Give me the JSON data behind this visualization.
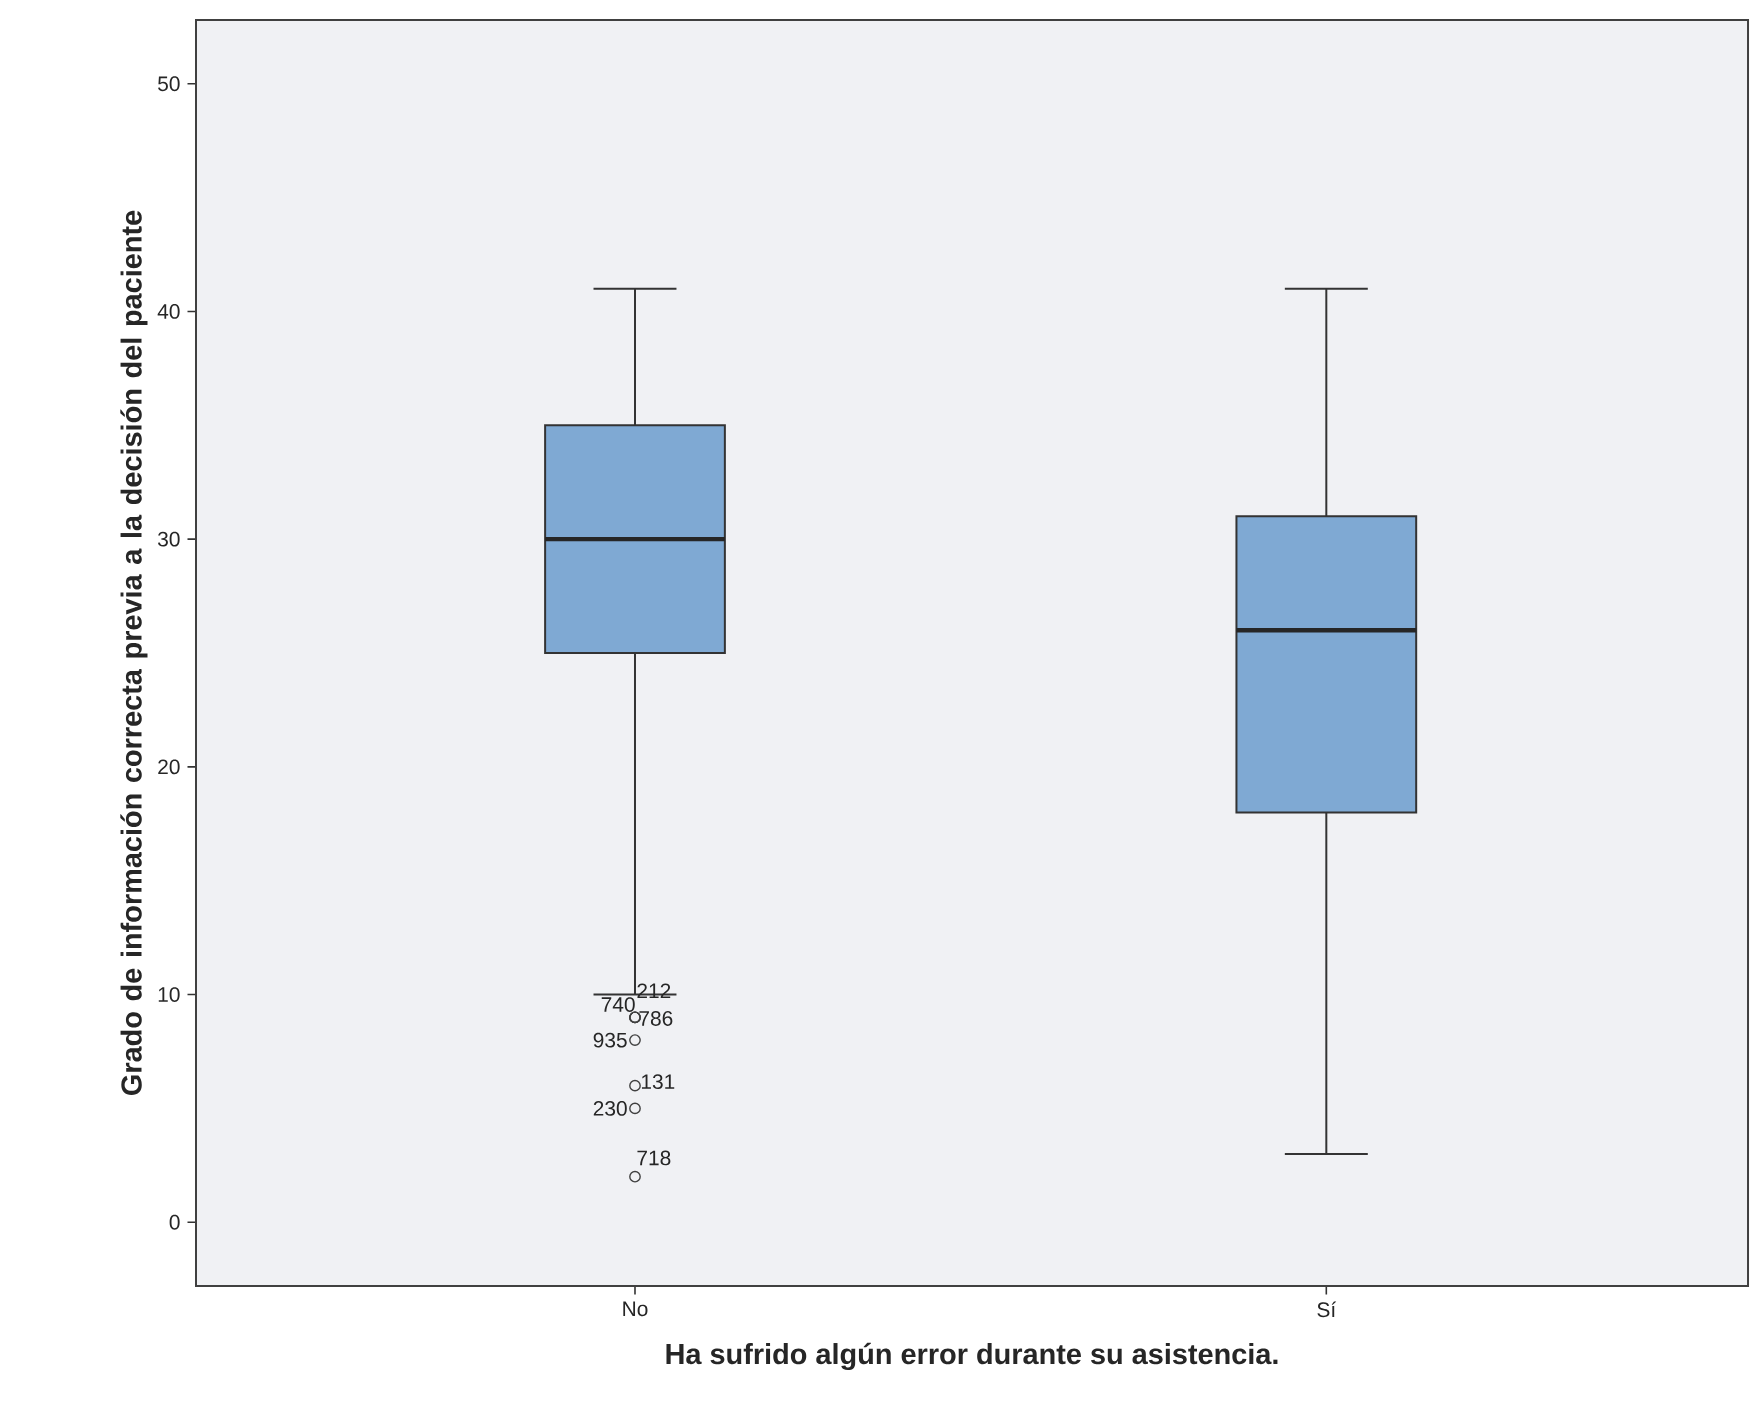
{
  "chart_data": {
    "type": "box",
    "xlabel": "Ha sufrido algún error durante su asistencia.",
    "ylabel": "Grado de información correcta previa a la decisión del paciente",
    "categories": [
      "No",
      "Sí"
    ],
    "boxes": [
      {
        "low": 10,
        "q1": 25,
        "median": 30,
        "q3": 35,
        "high": 41,
        "outliers": [
          9,
          9,
          9,
          8,
          6,
          5,
          2
        ]
      },
      {
        "low": 3,
        "q1": 18,
        "median": 26,
        "q3": 31,
        "high": 41
      }
    ],
    "color": "#7fa9d3",
    "marker": "circle",
    "ylim": [
      -2.8,
      52.8
    ],
    "yticks": [
      0,
      10,
      20,
      30,
      40,
      50
    ],
    "grid": false,
    "annotations": [
      "740",
      "212",
      "786",
      "935",
      "131",
      "230",
      "718"
    ]
  }
}
